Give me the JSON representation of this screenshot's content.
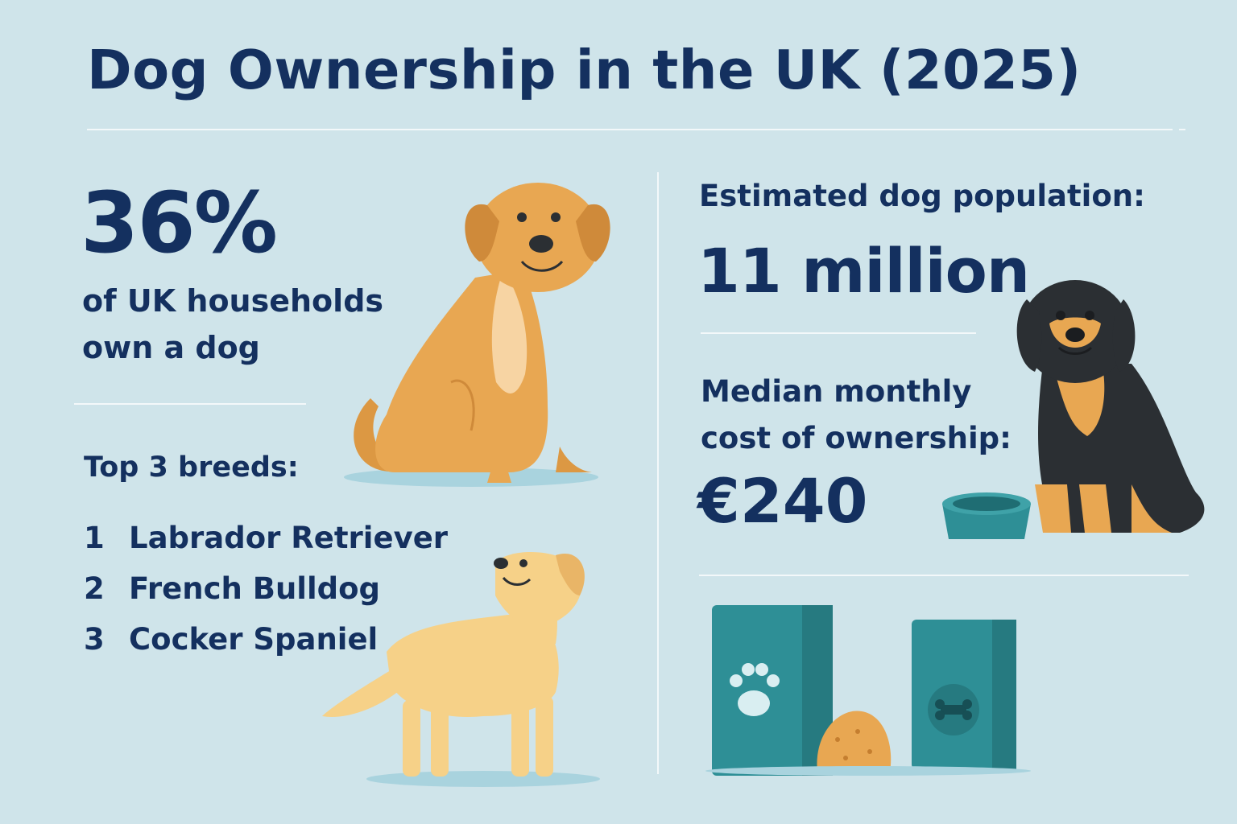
{
  "title": "Dog Ownership in the UK (2025)",
  "ownership": {
    "percentage": "36%",
    "description_line1": "of UK households",
    "description_line2": "own a dog"
  },
  "breeds": {
    "heading": "Top 3 breeds:",
    "items": [
      {
        "rank": "1",
        "name": "Labrador Retriever"
      },
      {
        "rank": "2",
        "name": "French Bulldog"
      },
      {
        "rank": "3",
        "name": "Cocker Spaniel"
      }
    ]
  },
  "population": {
    "label": "Estimated dog population:",
    "value": "11 million"
  },
  "cost": {
    "label_line1": "Median monthly",
    "label_line2": "cost of ownership:",
    "value": "€240"
  },
  "colors": {
    "background": "#cfe4ea",
    "text": "#14305f",
    "teal": "#2e8f96",
    "golden_dog": "#e8a752",
    "yellow_dog": "#f6d188",
    "black_dog": "#2b2f33"
  },
  "icons": [
    "sitting-golden-dog",
    "standing-yellow-labrador",
    "sitting-black-tan-dog",
    "dog-bowl",
    "dog-food-bag-paw",
    "dog-food-bag-bone",
    "kibble-ball"
  ]
}
